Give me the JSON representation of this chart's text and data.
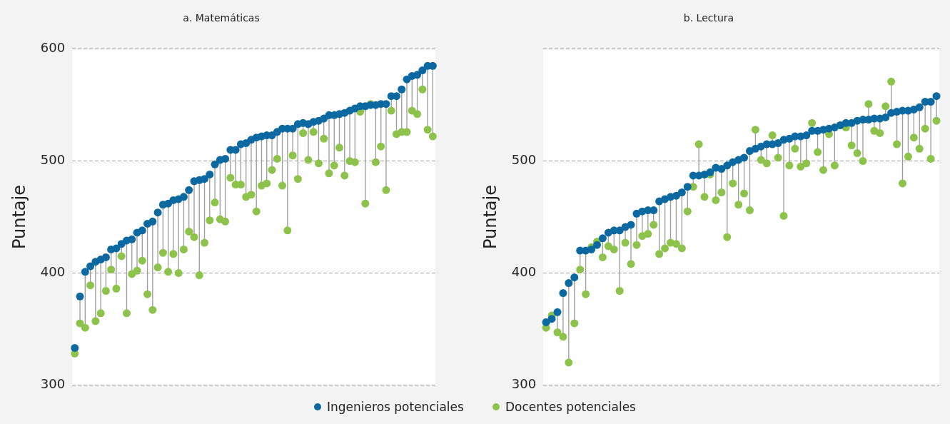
{
  "chart_data": [
    {
      "type": "lollipop",
      "title": "a. Matemáticas",
      "ylabel": "Puntaje",
      "categories": [
        null,
        null,
        null,
        null,
        null,
        null,
        null,
        null,
        null,
        null,
        null,
        null,
        null,
        null,
        null,
        null,
        null,
        null,
        null,
        null,
        null,
        null,
        null,
        null,
        null,
        null,
        null,
        null,
        null,
        null,
        null,
        null,
        null,
        null,
        null,
        null,
        null,
        null,
        null,
        null,
        null,
        null,
        null,
        null,
        null,
        null,
        null,
        null,
        null,
        null,
        null,
        null,
        null,
        null,
        null,
        null,
        null,
        null,
        null,
        null,
        null,
        null,
        null,
        null,
        null,
        null,
        null,
        null,
        null,
        null
      ],
      "ylim": [
        300,
        600
      ],
      "yticks": [
        300,
        400,
        500,
        600
      ],
      "grid": "y",
      "marker": "circle",
      "legend": "bottom",
      "tick_labels": "y",
      "series": [
        {
          "name": "Ingenieros potenciales",
          "color": "#0b68a0",
          "values": [
            333,
            379,
            401,
            406,
            410,
            412,
            414,
            421,
            422,
            426,
            429,
            430,
            436,
            438,
            444,
            446,
            454,
            461,
            462,
            465,
            466,
            468,
            474,
            482,
            483,
            484,
            488,
            497,
            501,
            502,
            510,
            510,
            515,
            516,
            519,
            521,
            522,
            523,
            523,
            526,
            529,
            529,
            529,
            533,
            534,
            533,
            535,
            536,
            538,
            541,
            541,
            542,
            543,
            545,
            547,
            549,
            549,
            550,
            550,
            551,
            551,
            558,
            558,
            564,
            573,
            576,
            577,
            581,
            585,
            585
          ]
        },
        {
          "name": "Docentes potenciales",
          "color": "#8dc34a",
          "values": [
            328,
            355,
            351,
            389,
            357,
            364,
            384,
            403,
            386,
            415,
            364,
            399,
            402,
            411,
            381,
            367,
            405,
            418,
            401,
            417,
            400,
            421,
            437,
            432,
            398,
            427,
            447,
            463,
            448,
            446,
            485,
            479,
            479,
            468,
            470,
            455,
            478,
            480,
            492,
            502,
            478,
            438,
            505,
            484,
            525,
            501,
            526,
            498,
            520,
            489,
            496,
            512,
            487,
            500,
            499,
            544,
            462,
            551,
            499,
            513,
            474,
            545,
            524,
            526,
            526,
            545,
            542,
            564,
            528,
            522
          ]
        }
      ]
    },
    {
      "type": "lollipop",
      "title": "b. Lectura",
      "ylabel": "Puntaje",
      "categories": [
        null,
        null,
        null,
        null,
        null,
        null,
        null,
        null,
        null,
        null,
        null,
        null,
        null,
        null,
        null,
        null,
        null,
        null,
        null,
        null,
        null,
        null,
        null,
        null,
        null,
        null,
        null,
        null,
        null,
        null,
        null,
        null,
        null,
        null,
        null,
        null,
        null,
        null,
        null,
        null,
        null,
        null,
        null,
        null,
        null,
        null,
        null,
        null,
        null,
        null,
        null,
        null,
        null,
        null,
        null,
        null,
        null,
        null,
        null,
        null,
        null,
        null,
        null,
        null,
        null,
        null,
        null,
        null,
        null,
        null
      ],
      "ylim": [
        300,
        600
      ],
      "yticks": [
        300,
        400,
        500,
        {
          "value": 600,
          "label": null
        }
      ],
      "grid": "y",
      "marker": "circle",
      "tick_labels": "y",
      "series": [
        {
          "color": "#0b68a0",
          "values": [
            356,
            359,
            365,
            382,
            391,
            396,
            420,
            420,
            421,
            425,
            431,
            436,
            438,
            438,
            441,
            443,
            453,
            455,
            456,
            456,
            464,
            466,
            468,
            469,
            472,
            477,
            487,
            487,
            488,
            490,
            494,
            493,
            496,
            499,
            501,
            503,
            509,
            511,
            513,
            515,
            515,
            516,
            519,
            520,
            522,
            522,
            523,
            527,
            527,
            528,
            529,
            530,
            532,
            534,
            534,
            536,
            537,
            537,
            538,
            538,
            539,
            543,
            544,
            545,
            545,
            546,
            548,
            553,
            553,
            558
          ]
        },
        {
          "color": "#8dc34a",
          "values": [
            351,
            362,
            347,
            343,
            320,
            355,
            403,
            381,
            423,
            428,
            414,
            424,
            421,
            384,
            427,
            408,
            425,
            433,
            435,
            443,
            417,
            422,
            427,
            426,
            422,
            455,
            477,
            515,
            468,
            488,
            465,
            472,
            432,
            480,
            461,
            471,
            456,
            528,
            501,
            498,
            523,
            503,
            451,
            496,
            511,
            495,
            498,
            534,
            508,
            492,
            524,
            496,
            532,
            530,
            514,
            507,
            500,
            551,
            527,
            525,
            549,
            571,
            515,
            480,
            504,
            521,
            511,
            529,
            502,
            536
          ]
        }
      ]
    }
  ]
}
